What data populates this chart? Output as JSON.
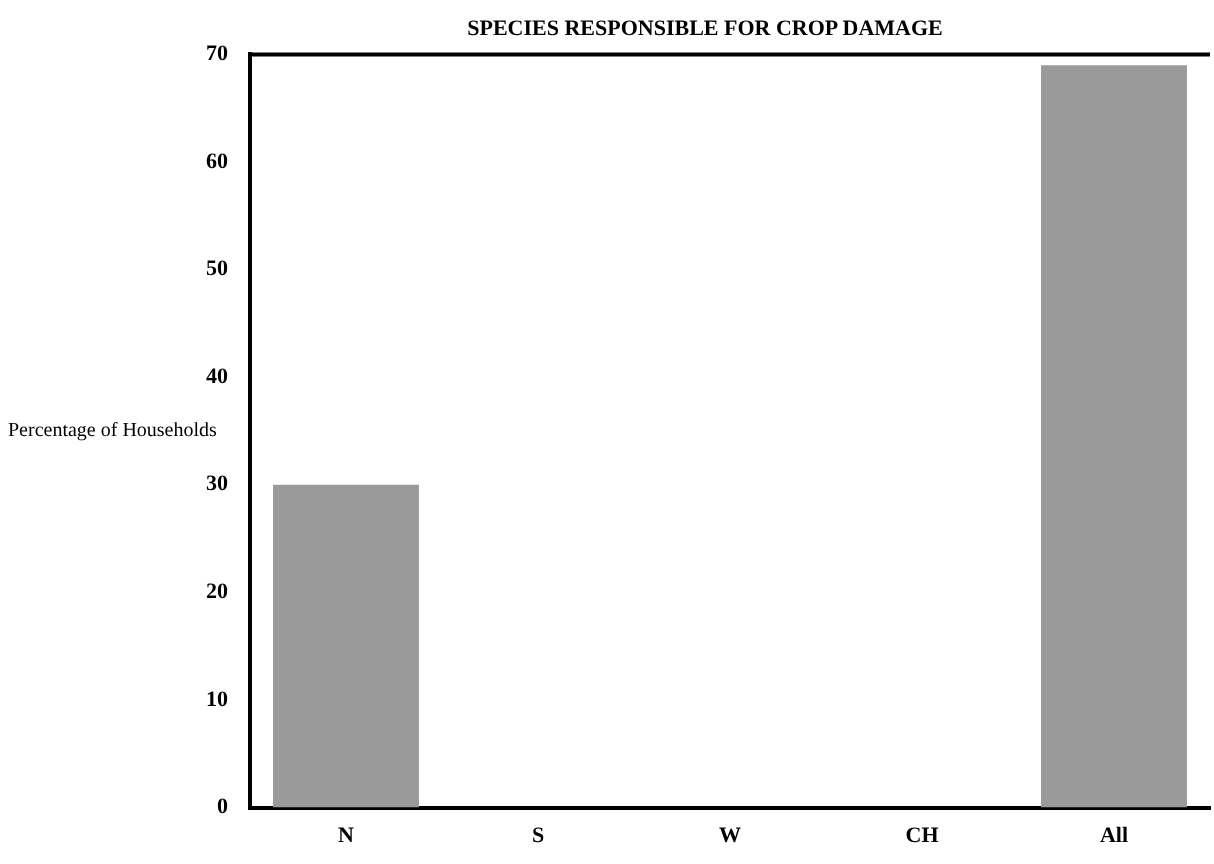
{
  "chart_data": {
    "type": "bar",
    "title": "SPECIES RESPONSIBLE FOR CROP DAMAGE",
    "ylabel": "Percentage of Households",
    "categories": [
      "N",
      "S",
      "W",
      "CH",
      "All"
    ],
    "values": [
      30,
      0,
      0,
      0,
      69
    ],
    "color": "#9a9a9a",
    "ylim": [
      0,
      70
    ],
    "yticks": [
      0,
      10,
      20,
      30,
      40,
      50,
      60,
      70
    ],
    "grid": false,
    "legend": false
  }
}
